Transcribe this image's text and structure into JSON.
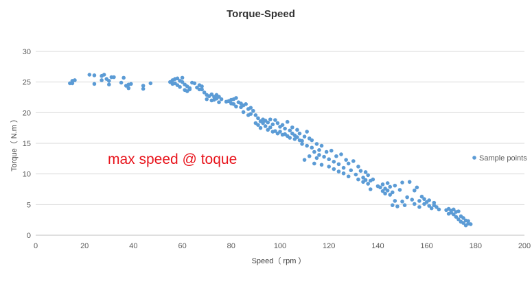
{
  "chart_data": {
    "type": "scatter",
    "title": "Torque-Speed",
    "xlabel": "Speed（ rpm ）",
    "ylabel": "Torque（ N.m ）",
    "xlim": [
      0,
      200
    ],
    "ylim": [
      0,
      30
    ],
    "xticks": [
      0,
      20,
      40,
      60,
      80,
      100,
      120,
      140,
      160,
      180,
      200
    ],
    "yticks": [
      0,
      5,
      10,
      15,
      20,
      25,
      30
    ],
    "grid": "horizontal",
    "legend": "right",
    "annotation": "max speed @ toque",
    "point_color": "#5b9bd5",
    "annotation_color": "#e8141c",
    "series": [
      {
        "name": "Sample points",
        "points": [
          [
            14,
            24.8
          ],
          [
            15,
            25.2
          ],
          [
            15,
            24.8
          ],
          [
            16,
            25.3
          ],
          [
            22,
            26.2
          ],
          [
            24,
            26.1
          ],
          [
            24,
            24.7
          ],
          [
            27,
            25.3
          ],
          [
            27,
            26.0
          ],
          [
            28,
            26.2
          ],
          [
            29,
            25.5
          ],
          [
            30,
            24.6
          ],
          [
            30,
            25.2
          ],
          [
            31,
            25.8
          ],
          [
            32,
            25.8
          ],
          [
            35,
            24.9
          ],
          [
            36,
            25.7
          ],
          [
            37,
            24.4
          ],
          [
            38,
            24.6
          ],
          [
            38,
            24.0
          ],
          [
            39,
            24.7
          ],
          [
            44,
            24.4
          ],
          [
            44,
            23.9
          ],
          [
            47,
            24.8
          ],
          [
            55,
            25.0
          ],
          [
            56,
            24.7
          ],
          [
            56,
            25.3
          ],
          [
            57,
            25.5
          ],
          [
            57,
            24.8
          ],
          [
            58,
            24.5
          ],
          [
            58,
            25.6
          ],
          [
            59,
            25.2
          ],
          [
            59,
            24.2
          ],
          [
            60,
            25.0
          ],
          [
            60,
            25.7
          ],
          [
            61,
            24.6
          ],
          [
            61,
            23.7
          ],
          [
            62,
            24.3
          ],
          [
            62,
            23.5
          ],
          [
            63,
            24.0
          ],
          [
            63,
            23.8
          ],
          [
            64,
            24.9
          ],
          [
            65,
            24.8
          ],
          [
            66,
            24.1
          ],
          [
            67,
            23.8
          ],
          [
            67,
            24.5
          ],
          [
            68,
            23.8
          ],
          [
            68,
            24.3
          ],
          [
            69,
            23.3
          ],
          [
            70,
            22.9
          ],
          [
            70,
            22.2
          ],
          [
            71,
            22.7
          ],
          [
            72,
            23.0
          ],
          [
            72,
            22.0
          ],
          [
            73,
            22.6
          ],
          [
            73,
            22.1
          ],
          [
            74,
            22.9
          ],
          [
            74,
            22.3
          ],
          [
            75,
            22.6
          ],
          [
            75,
            21.7
          ],
          [
            76,
            22.2
          ],
          [
            78,
            21.8
          ],
          [
            79,
            21.9
          ],
          [
            80,
            21.5
          ],
          [
            80,
            22.1
          ],
          [
            81,
            21.4
          ],
          [
            81,
            22.2
          ],
          [
            82,
            21.0
          ],
          [
            82,
            22.4
          ],
          [
            83,
            21.7
          ],
          [
            84,
            20.9
          ],
          [
            84,
            21.5
          ],
          [
            85,
            21.2
          ],
          [
            85,
            20.1
          ],
          [
            86,
            21.4
          ],
          [
            87,
            20.6
          ],
          [
            87,
            19.6
          ],
          [
            88,
            20.8
          ],
          [
            88,
            19.8
          ],
          [
            89,
            20.3
          ],
          [
            90,
            19.6
          ],
          [
            90,
            18.3
          ],
          [
            91,
            19.1
          ],
          [
            91,
            18.0
          ],
          [
            92,
            18.6
          ],
          [
            92,
            17.5
          ],
          [
            93,
            18.9
          ],
          [
            93,
            18.3
          ],
          [
            94,
            18.7
          ],
          [
            94,
            17.8
          ],
          [
            95,
            18.4
          ],
          [
            95,
            17.2
          ],
          [
            96,
            18.9
          ],
          [
            96,
            17.6
          ],
          [
            97,
            18.1
          ],
          [
            97,
            16.9
          ],
          [
            98,
            18.8
          ],
          [
            98,
            17.0
          ],
          [
            99,
            18.3
          ],
          [
            99,
            16.6
          ],
          [
            100,
            17.7
          ],
          [
            100,
            16.9
          ],
          [
            101,
            16.4
          ],
          [
            101,
            18.0
          ],
          [
            102,
            17.4
          ],
          [
            102,
            16.5
          ],
          [
            103,
            16.2
          ],
          [
            103,
            18.5
          ],
          [
            104,
            17.1
          ],
          [
            104,
            15.9
          ],
          [
            105,
            17.6
          ],
          [
            105,
            16.6
          ],
          [
            106,
            16.3
          ],
          [
            106,
            15.7
          ],
          [
            107,
            17.2
          ],
          [
            107,
            16.0
          ],
          [
            108,
            15.5
          ],
          [
            108,
            16.6
          ],
          [
            109,
            14.9
          ],
          [
            109,
            15.4
          ],
          [
            110,
            16.1
          ],
          [
            110,
            12.3
          ],
          [
            111,
            14.6
          ],
          [
            111,
            16.9
          ],
          [
            112,
            15.8
          ],
          [
            112,
            12.9
          ],
          [
            113,
            14.3
          ],
          [
            113,
            15.5
          ],
          [
            114,
            13.6
          ],
          [
            114,
            11.7
          ],
          [
            115,
            14.9
          ],
          [
            115,
            12.6
          ],
          [
            116,
            13.1
          ],
          [
            116,
            13.9
          ],
          [
            117,
            11.5
          ],
          [
            117,
            14.6
          ],
          [
            118,
            12.8
          ],
          [
            119,
            13.6
          ],
          [
            120,
            12.4
          ],
          [
            120,
            11.2
          ],
          [
            121,
            13.8
          ],
          [
            122,
            12.0
          ],
          [
            122,
            10.8
          ],
          [
            123,
            12.9
          ],
          [
            124,
            11.6
          ],
          [
            124,
            10.4
          ],
          [
            125,
            13.2
          ],
          [
            126,
            11.0
          ],
          [
            126,
            10.1
          ],
          [
            127,
            12.3
          ],
          [
            128,
            11.7
          ],
          [
            128,
            9.6
          ],
          [
            129,
            10.6
          ],
          [
            130,
            12.1
          ],
          [
            131,
            9.9
          ],
          [
            132,
            11.2
          ],
          [
            132,
            9.1
          ],
          [
            133,
            10.5
          ],
          [
            134,
            9.4
          ],
          [
            134,
            8.7
          ],
          [
            135,
            10.3
          ],
          [
            135,
            9.0
          ],
          [
            136,
            8.4
          ],
          [
            136,
            9.8
          ],
          [
            137,
            8.9
          ],
          [
            137,
            7.5
          ],
          [
            138,
            9.1
          ],
          [
            140,
            8.0
          ],
          [
            141,
            7.8
          ],
          [
            142,
            8.3
          ],
          [
            142,
            7.2
          ],
          [
            143,
            7.6
          ],
          [
            143,
            6.8
          ],
          [
            144,
            7.3
          ],
          [
            144,
            8.5
          ],
          [
            145,
            6.6
          ],
          [
            145,
            7.9
          ],
          [
            146,
            7.0
          ],
          [
            146,
            4.9
          ],
          [
            147,
            8.1
          ],
          [
            147,
            5.6
          ],
          [
            148,
            4.7
          ],
          [
            149,
            7.4
          ],
          [
            150,
            5.5
          ],
          [
            150,
            8.6
          ],
          [
            151,
            4.9
          ],
          [
            152,
            6.2
          ],
          [
            153,
            8.7
          ],
          [
            154,
            5.8
          ],
          [
            155,
            7.3
          ],
          [
            155,
            5.1
          ],
          [
            156,
            7.8
          ],
          [
            157,
            5.6
          ],
          [
            157,
            4.6
          ],
          [
            158,
            6.3
          ],
          [
            159,
            5.9
          ],
          [
            159,
            5.1
          ],
          [
            160,
            5.4
          ],
          [
            161,
            4.8
          ],
          [
            161,
            5.7
          ],
          [
            162,
            4.4
          ],
          [
            163,
            5.3
          ],
          [
            163,
            4.9
          ],
          [
            164,
            4.6
          ],
          [
            165,
            4.2
          ],
          [
            168,
            4.1
          ],
          [
            169,
            4.3
          ],
          [
            169,
            3.5
          ],
          [
            170,
            4.0
          ],
          [
            170,
            3.7
          ],
          [
            171,
            3.4
          ],
          [
            171,
            4.2
          ],
          [
            172,
            3.0
          ],
          [
            172,
            3.8
          ],
          [
            173,
            2.6
          ],
          [
            173,
            3.9
          ],
          [
            174,
            2.2
          ],
          [
            174,
            3.1
          ],
          [
            175,
            2.0
          ],
          [
            175,
            2.8
          ],
          [
            176,
            1.6
          ],
          [
            176,
            2.4
          ],
          [
            177,
            1.9
          ],
          [
            177,
            2.3
          ],
          [
            178,
            1.8
          ]
        ]
      }
    ]
  }
}
